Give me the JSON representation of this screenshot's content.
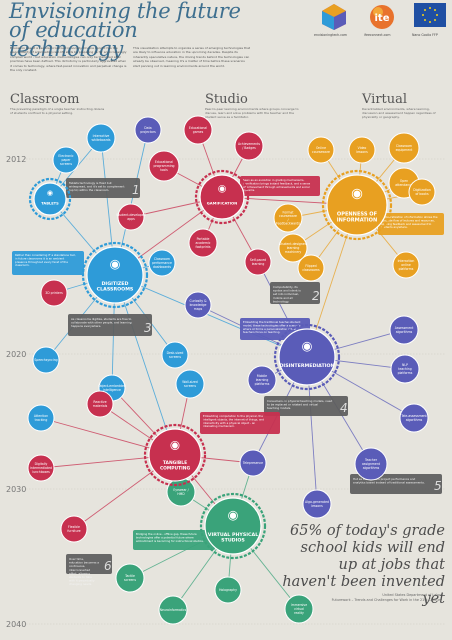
{
  "header": {
    "title": "Envisioning the future of education technology",
    "intro_left": "Education has at a peculiar crossroad in society. On one hand it has the responsibility of anticipating real-life skills by preparing us for an increasingly complex world – but education methodologies can only be theorized after practices have been defined. This dichotomy is particularly aggravated when it comes to technology, where fast-paced innovation and perpetual change is the only constant.",
    "intro_right": "This visualization attempts to organize a series of emerging technologies that are likely to influence education in the upcoming decades. Despite its inherently speculative nature, the driving trends behind the technologies can already be observed, meaning it's a matter of time before these scenarios start panning out in learning environments around the world."
  },
  "logos": [
    {
      "name": "envisioningtech-logo",
      "caption": "envisioningtech.com",
      "color": "#c04b6a"
    },
    {
      "name": "itv-logo",
      "caption": "ifeeconnect.com",
      "color": "#e8722c"
    },
    {
      "name": "eu-logo",
      "caption": "Nano Coolio FFP",
      "color": "#1f4fa3"
    }
  ],
  "columns": [
    {
      "title": "Classroom",
      "subtitle": "The prevailing paradigm of a single teacher instructing dozens of students confined to a physical setting."
    },
    {
      "title": "Studio",
      "subtitle": "Peer-to-peer learning environments where groups converge to discuss, learn and solve problems with the teacher and the student serve as a facilitator."
    },
    {
      "title": "Virtual",
      "subtitle": "Decentralized environments, where learning, discussion and assessment happen regardless of physicality or geography."
    }
  ],
  "years": [
    "2012",
    "2020",
    "2030",
    "2040"
  ],
  "hubs": [
    {
      "id": "tablets",
      "label": "TABLETS",
      "sub": "",
      "color": "#2e9bd8"
    },
    {
      "id": "gamification",
      "label": "GAMIFICATION",
      "sub": "",
      "color": "#c7304f"
    },
    {
      "id": "digitized",
      "label": "DIGITIZED",
      "sub": "CLASSROOMS",
      "color": "#2e9bd8"
    },
    {
      "id": "openness",
      "label": "OPENNESS OF",
      "sub": "INFORMATION",
      "color": "#e8a021"
    },
    {
      "id": "disintermediation",
      "label": "DISINTERMEDIATION",
      "sub": "",
      "color": "#5a5cb8"
    },
    {
      "id": "tangible",
      "label": "TANGIBLE",
      "sub": "COMPUTING",
      "color": "#c7304f"
    },
    {
      "id": "virtual",
      "label": "VIRTUAL PHYSICAL",
      "sub": "STUDIOS",
      "color": "#3aa37a"
    }
  ],
  "nodes": [
    {
      "id": "interactive-whiteboards",
      "label": "Interactive whiteboards",
      "color": "#2e9bd8"
    },
    {
      "id": "data-projectors",
      "label": "Data projectors",
      "color": "#5a5cb8"
    },
    {
      "id": "educational-games",
      "label": "Educational games",
      "color": "#c7304f"
    },
    {
      "id": "electronic-paper",
      "label": "Electronic paper screens",
      "color": "#2e9bd8"
    },
    {
      "id": "educational-programming",
      "label": "Educational programming tools",
      "color": "#c7304f"
    },
    {
      "id": "student-apps",
      "label": "Student-developed apps",
      "color": "#c7304f"
    },
    {
      "id": "achievements",
      "label": "Achievements / Badges",
      "color": "#c7304f"
    },
    {
      "id": "online-courseware",
      "label": "Online courseware",
      "color": "#e8a021"
    },
    {
      "id": "video-lessons",
      "label": "Video lessons",
      "color": "#e8a021"
    },
    {
      "id": "classroom-equipment",
      "label": "Classroom equipment",
      "color": "#e8a021"
    },
    {
      "id": "open-attendance",
      "label": "Open attendance",
      "color": "#e8a021"
    },
    {
      "id": "digitization-books",
      "label": "Digitization of books",
      "color": "#e8a021"
    },
    {
      "id": "portable-academic",
      "label": "Portable academic footprints",
      "color": "#c7304f"
    },
    {
      "id": "format-courseware",
      "label": "Format courseware / Feedbackwards",
      "color": "#e8a021"
    },
    {
      "id": "student-designed",
      "label": "Student-designed learning machinery",
      "color": "#e8a021"
    },
    {
      "id": "self-paced",
      "label": "Self-paced learning",
      "color": "#c7304f"
    },
    {
      "id": "flipped",
      "label": "Flipped classrooms",
      "color": "#e8a021"
    },
    {
      "id": "interaction-online",
      "label": "Interaction online platforms",
      "color": "#e8a021"
    },
    {
      "id": "3d-printers",
      "label": "3D printers",
      "color": "#c7304f"
    },
    {
      "id": "classroom-performance",
      "label": "Classroom performance dashboards",
      "color": "#2e9bd8"
    },
    {
      "id": "curiosity-knowledge",
      "label": "Curiosity & knowledge maps",
      "color": "#5a5cb8"
    },
    {
      "id": "desk-sized",
      "label": "Desk-sized screens",
      "color": "#2e9bd8"
    },
    {
      "id": "speechsyncing",
      "label": "Speechsyncing",
      "color": "#2e9bd8"
    },
    {
      "id": "object-intelligence",
      "label": "Object-embedded intelligence",
      "color": "#2e9bd8"
    },
    {
      "id": "wall-sized",
      "label": "Wall-sized screens",
      "color": "#2e9bd8"
    },
    {
      "id": "mobile-learning",
      "label": "Mobile learning platforms",
      "color": "#5a5cb8"
    },
    {
      "id": "assessment-algorithms",
      "label": "Assessment algorithms",
      "color": "#5a5cb8"
    },
    {
      "id": "nlp-platforms",
      "label": "NLP teaching platforms",
      "color": "#5a5cb8"
    },
    {
      "id": "attention-tracking",
      "label": "Attention tracking",
      "color": "#2e9bd8"
    },
    {
      "id": "reactive-materials",
      "label": "Reactive materials",
      "color": "#c7304f"
    },
    {
      "id": "tele-assessment",
      "label": "Tele-assessment algorithms",
      "color": "#5a5cb8"
    },
    {
      "id": "teacher-assignment",
      "label": "Teacher assignment algorithms",
      "color": "#5a5cb8"
    },
    {
      "id": "digitally-intermediated",
      "label": "Digitally intermediated lunchboxes",
      "color": "#c7304f"
    },
    {
      "id": "telepresence",
      "label": "Telepresence",
      "color": "#5a5cb8"
    },
    {
      "id": "algo-generated",
      "label": "Algo-generated lessons",
      "color": "#5a5cb8"
    },
    {
      "id": "eyewear",
      "label": "Eyewear / HMD",
      "color": "#3aa37a"
    },
    {
      "id": "flexible-furniture",
      "label": "Flexible furniture",
      "color": "#c7304f"
    },
    {
      "id": "neuroinformatics",
      "label": "Neuroinformatics",
      "color": "#3aa37a"
    },
    {
      "id": "holography",
      "label": "Holography",
      "color": "#3aa37a"
    },
    {
      "id": "immersive-vr",
      "label": "Immersive virtual reality",
      "color": "#3aa37a"
    },
    {
      "id": "tactile-screens",
      "label": "Tactile screens",
      "color": "#3aa37a"
    }
  ],
  "notes": [
    {
      "num": "1",
      "text": "Tablets technology is fixed but widespread, and it's set to complement (up to) within the classroom."
    },
    {
      "num": "2",
      "text": "Computability, its syntax and intent is set into individual, mobile and all technology."
    },
    {
      "num": "3",
      "text": "As classrooms digitize, students are free to collaborate with other people, and learning happens everywhere."
    },
    {
      "num": "4",
      "text": "Consumers, in physical teaching models, need to be replaced or rotated and virtual teaching models."
    },
    {
      "num": "5",
      "text": "Hot as the learners project performance and analytics based instead of traditional assessments."
    },
    {
      "num": "6",
      "text": "Over time, education becomes a continuous, interconnected effort, allowing students to take with it perpetually changing needs."
    }
  ],
  "callouts": [
    "Rather than considering IT a standalone tool, in future classrooms it is an ambient presence throughout every facet of the classroom.",
    "Seen as an evolution in grading mechanisms, gamification brings instant feedback, and a sense of achievement through achievements and social systems.",
    "Democratization of information allows the absolute flow of lectures and resources, opening feedback and assessment to students anywhere.",
    "Embedding the traditional teacher-student model, these technologies offer a scenario where AI forms a personalization within teachers focus on teaching.",
    "Embedding computation to the physical, the intelligent objects, the internet of things, and interactivity with a physical object - an interesting mechanism.",
    "Bridging the online - offline gap, these future technologies offer a potential future where embodiment is becoming for instructional studios."
  ],
  "statistic": "65% of today's grade school kids will end up at jobs that haven't been invented yet",
  "source": "United States Department of Labor\nFuturework – Trends and Challenges for Work in the 21st Century"
}
